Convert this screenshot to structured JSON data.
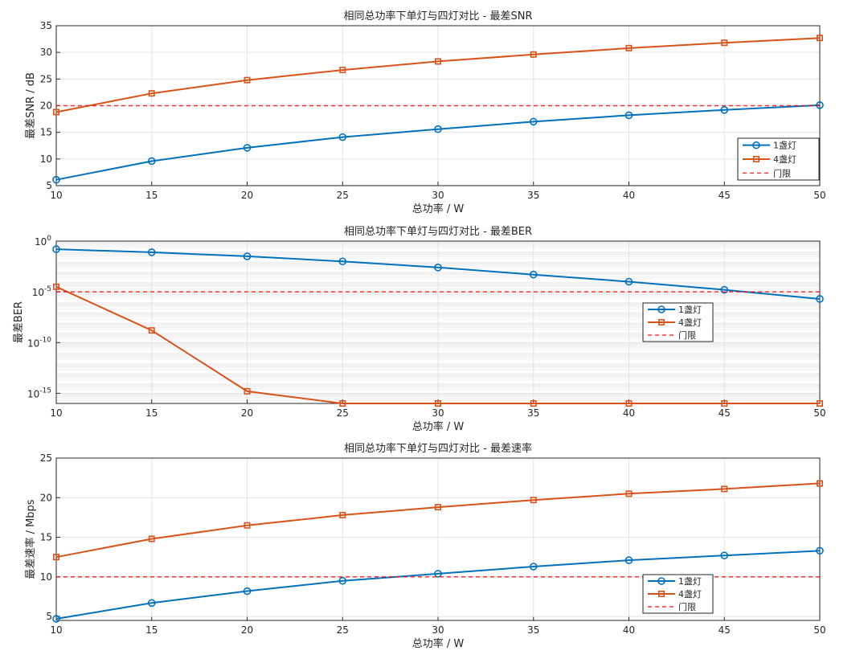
{
  "figure": {
    "panel_count": 3
  },
  "chart_data": [
    {
      "type": "line",
      "title": "相同总功率下单灯与四灯对比 - 最差SNR",
      "xlabel": "总功率 / W",
      "ylabel": "最差SNR / dB",
      "x": [
        10,
        15,
        20,
        25,
        30,
        35,
        40,
        45,
        50
      ],
      "xlim": [
        10,
        50
      ],
      "xticks": [
        "10",
        "15",
        "20",
        "25",
        "30",
        "35",
        "40",
        "45",
        "50"
      ],
      "ylim": [
        5,
        35
      ],
      "yscale": "linear",
      "yticks": [
        5,
        10,
        15,
        20,
        25,
        30,
        35
      ],
      "ytick_labels": [
        "5",
        "10",
        "15",
        "20",
        "25",
        "30",
        "35"
      ],
      "grid": true,
      "legend_position": "bottom-right",
      "series": [
        {
          "name": "1盏灯",
          "color": "#0072BD",
          "marker": "circle",
          "values": [
            6.1,
            9.6,
            12.1,
            14.1,
            15.6,
            17.0,
            18.2,
            19.2,
            20.1
          ]
        },
        {
          "name": "4盏灯",
          "color": "#D95319",
          "marker": "square",
          "values": [
            18.8,
            22.3,
            24.8,
            26.7,
            28.3,
            29.6,
            30.8,
            31.8,
            32.7
          ]
        },
        {
          "name": "门限",
          "color": "#FF0000",
          "style": "dashed",
          "values": [
            20,
            20,
            20,
            20,
            20,
            20,
            20,
            20,
            20
          ]
        }
      ]
    },
    {
      "type": "line",
      "title": "相同总功率下单灯与四灯对比 - 最差BER",
      "xlabel": "总功率 / W",
      "ylabel": "最差BER",
      "x": [
        10,
        15,
        20,
        25,
        30,
        35,
        40,
        45,
        50
      ],
      "xlim": [
        10,
        50
      ],
      "xticks": [
        "10",
        "15",
        "20",
        "25",
        "30",
        "35",
        "40",
        "45",
        "50"
      ],
      "ylim_log10": [
        -16,
        0
      ],
      "yscale": "log",
      "yticks_log10": [
        -15,
        -10,
        -5,
        0
      ],
      "ytick_labels": [
        {
          "base": "10",
          "exp": "-15"
        },
        {
          "base": "10",
          "exp": "-10"
        },
        {
          "base": "10",
          "exp": "-5"
        },
        {
          "base": "10",
          "exp": "0"
        }
      ],
      "grid": true,
      "legend_position": "center-right",
      "series": [
        {
          "name": "1盏灯",
          "color": "#0072BD",
          "marker": "circle",
          "values_log10": [
            -0.8,
            -1.1,
            -1.5,
            -2.0,
            -2.6,
            -3.3,
            -4.0,
            -4.8,
            -5.7
          ]
        },
        {
          "name": "4盏灯",
          "color": "#D95319",
          "marker": "square",
          "values_log10": [
            -4.5,
            -8.8,
            -14.8,
            -16,
            -16,
            -16,
            -16,
            -16,
            -16
          ]
        },
        {
          "name": "门限",
          "color": "#FF0000",
          "style": "dashed",
          "values_log10": [
            -5,
            -5,
            -5,
            -5,
            -5,
            -5,
            -5,
            -5,
            -5
          ]
        }
      ]
    },
    {
      "type": "line",
      "title": "相同总功率下单灯与四灯对比 - 最差速率",
      "xlabel": "总功率 / W",
      "ylabel": "最差速率 / Mbps",
      "x": [
        10,
        15,
        20,
        25,
        30,
        35,
        40,
        45,
        50
      ],
      "xlim": [
        10,
        50
      ],
      "xticks": [
        "10",
        "15",
        "20",
        "25",
        "30",
        "35",
        "40",
        "45",
        "50"
      ],
      "ylim": [
        4.5,
        25
      ],
      "yscale": "linear",
      "yticks": [
        5,
        10,
        15,
        20,
        25
      ],
      "ytick_labels": [
        "5",
        "10",
        "15",
        "20",
        "25"
      ],
      "grid": true,
      "legend_position": "bottom-right",
      "series": [
        {
          "name": "1盏灯",
          "color": "#0072BD",
          "marker": "circle",
          "values": [
            4.7,
            6.7,
            8.2,
            9.5,
            10.4,
            11.3,
            12.1,
            12.7,
            13.3
          ]
        },
        {
          "name": "4盏灯",
          "color": "#D95319",
          "marker": "square",
          "values": [
            12.5,
            14.8,
            16.5,
            17.8,
            18.8,
            19.7,
            20.5,
            21.1,
            21.8
          ]
        },
        {
          "name": "门限",
          "color": "#FF0000",
          "style": "dashed",
          "values": [
            10,
            10,
            10,
            10,
            10,
            10,
            10,
            10,
            10
          ]
        }
      ]
    }
  ]
}
